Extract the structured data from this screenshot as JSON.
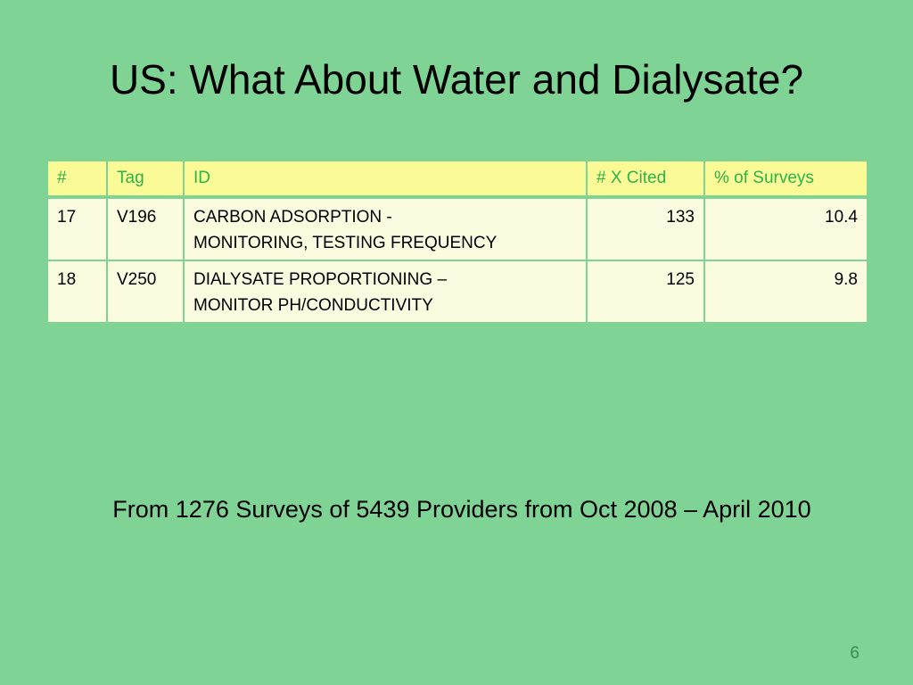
{
  "slide": {
    "title": "US: What About Water and Dialysate?",
    "footnote": "From 1276 Surveys of 5439 Providers from Oct 2008 – April 2010",
    "page_number": "6"
  },
  "table": {
    "headers": [
      "#",
      "Tag",
      "ID",
      "# X Cited",
      "% of Surveys"
    ],
    "rows": [
      {
        "num": "17",
        "tag": "V196",
        "id_line1": "CARBON ADSORPTION -",
        "id_line2": "MONITORING, TESTING FREQUENCY",
        "cited": "133",
        "percent": "10.4"
      },
      {
        "num": "18",
        "tag": "V250",
        "id_line1": "DIALYSATE PROPORTIONING –",
        "id_line2": "MONITOR PH/CONDUCTIVITY",
        "cited": "125",
        "percent": "9.8"
      }
    ]
  },
  "colors": {
    "background": "#7fd394",
    "header_fill": "#fafa96",
    "header_text": "#2eb34a",
    "row_fill": "#fafbdf"
  }
}
